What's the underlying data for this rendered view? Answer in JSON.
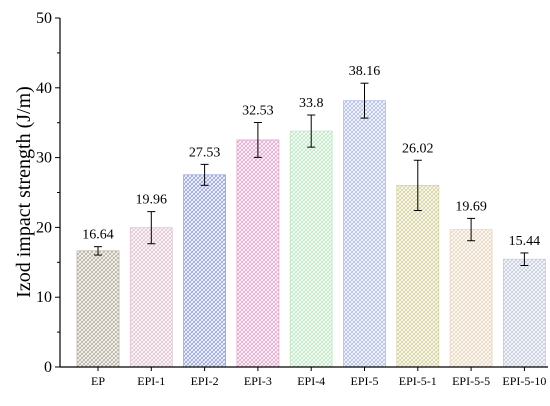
{
  "chart_data": {
    "type": "bar",
    "title": "",
    "xlabel": "",
    "ylabel": "Izod impact strength (J/m)",
    "ylim": [
      0,
      50
    ],
    "yticks": [
      0,
      10,
      20,
      30,
      40,
      50
    ],
    "grid": false,
    "categories": [
      "EP",
      "EPI-1",
      "EPI-2",
      "EPI-3",
      "EPI-4",
      "EPI-5",
      "EPI-5-1",
      "EPI-5-5",
      "EPI-5-10"
    ],
    "values": [
      16.64,
      19.96,
      27.53,
      32.53,
      33.8,
      38.16,
      26.02,
      19.69,
      15.44
    ],
    "value_labels": [
      "16.64",
      "19.96",
      "27.53",
      "32.53",
      "33.8",
      "38.16",
      "26.02",
      "19.69",
      "15.44"
    ],
    "error": [
      0.6,
      2.3,
      1.5,
      2.5,
      2.3,
      2.5,
      3.6,
      1.6,
      0.9
    ],
    "colors": [
      "#b8b0a0",
      "#e2c4d2",
      "#9aa6dc",
      "#e3a8cf",
      "#bfe8c4",
      "#b3bde6",
      "#d6d29c",
      "#ead7bf",
      "#c5ccde"
    ]
  }
}
